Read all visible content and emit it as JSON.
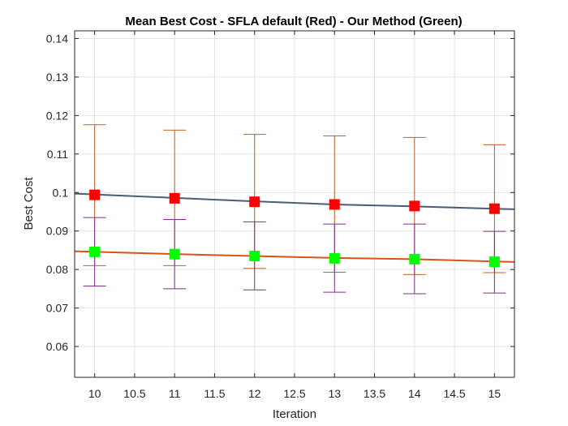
{
  "chart_data": {
    "type": "line",
    "title": "Mean Best Cost - SFLA default (Red) - Our Method (Green)",
    "xlabel": "Iteration",
    "ylabel": "Best Cost",
    "xlim": [
      9.75,
      15.25
    ],
    "ylim": [
      0.052,
      0.142
    ],
    "xticks": [
      10,
      10.5,
      11,
      11.5,
      12,
      12.5,
      13,
      13.5,
      14,
      14.5,
      15
    ],
    "xtick_labels": [
      "10",
      "10.5",
      "11",
      "11.5",
      "12",
      "12.5",
      "13",
      "13.5",
      "14",
      "14.5",
      "15"
    ],
    "yticks": [
      0.06,
      0.07,
      0.08,
      0.09,
      0.1,
      0.11,
      0.12,
      0.13,
      0.14
    ],
    "ytick_labels": [
      "0.06",
      "0.07",
      "0.08",
      "0.09",
      "0.1",
      "0.11",
      "0.12",
      "0.13",
      "0.14"
    ],
    "grid": true,
    "series": [
      {
        "x": [
          10,
          11,
          12,
          13,
          14,
          15
        ],
        "values": [
          0.0994,
          0.0985,
          0.0976,
          0.0969,
          0.0965,
          0.0958
        ],
        "error_upper": [
          0.1176,
          0.1162,
          0.1151,
          0.1147,
          0.1143,
          0.1124
        ],
        "error_lower": [
          0.081,
          0.081,
          0.0803,
          0.0793,
          0.0787,
          0.0792
        ],
        "trend": [
          0.0995,
          0.0986,
          0.0977,
          0.0969,
          0.0964,
          0.0958
        ],
        "marker_color": "#ff0000",
        "errorbar_color": "#c0602a",
        "trend_color": "#4a5d78"
      },
      {
        "x": [
          10,
          11,
          12,
          13,
          14,
          15
        ],
        "values": [
          0.0846,
          0.084,
          0.0835,
          0.0829,
          0.0827,
          0.082
        ],
        "error_upper": [
          0.0935,
          0.093,
          0.0924,
          0.0918,
          0.0918,
          0.0899
        ],
        "error_lower": [
          0.0757,
          0.075,
          0.0747,
          0.0741,
          0.0737,
          0.0739
        ],
        "trend": [
          0.0846,
          0.084,
          0.0835,
          0.083,
          0.0827,
          0.0821
        ],
        "marker_color": "#00ff00",
        "errorbar_color": "#7e2f8e",
        "trend_color": "#d95319"
      }
    ]
  }
}
